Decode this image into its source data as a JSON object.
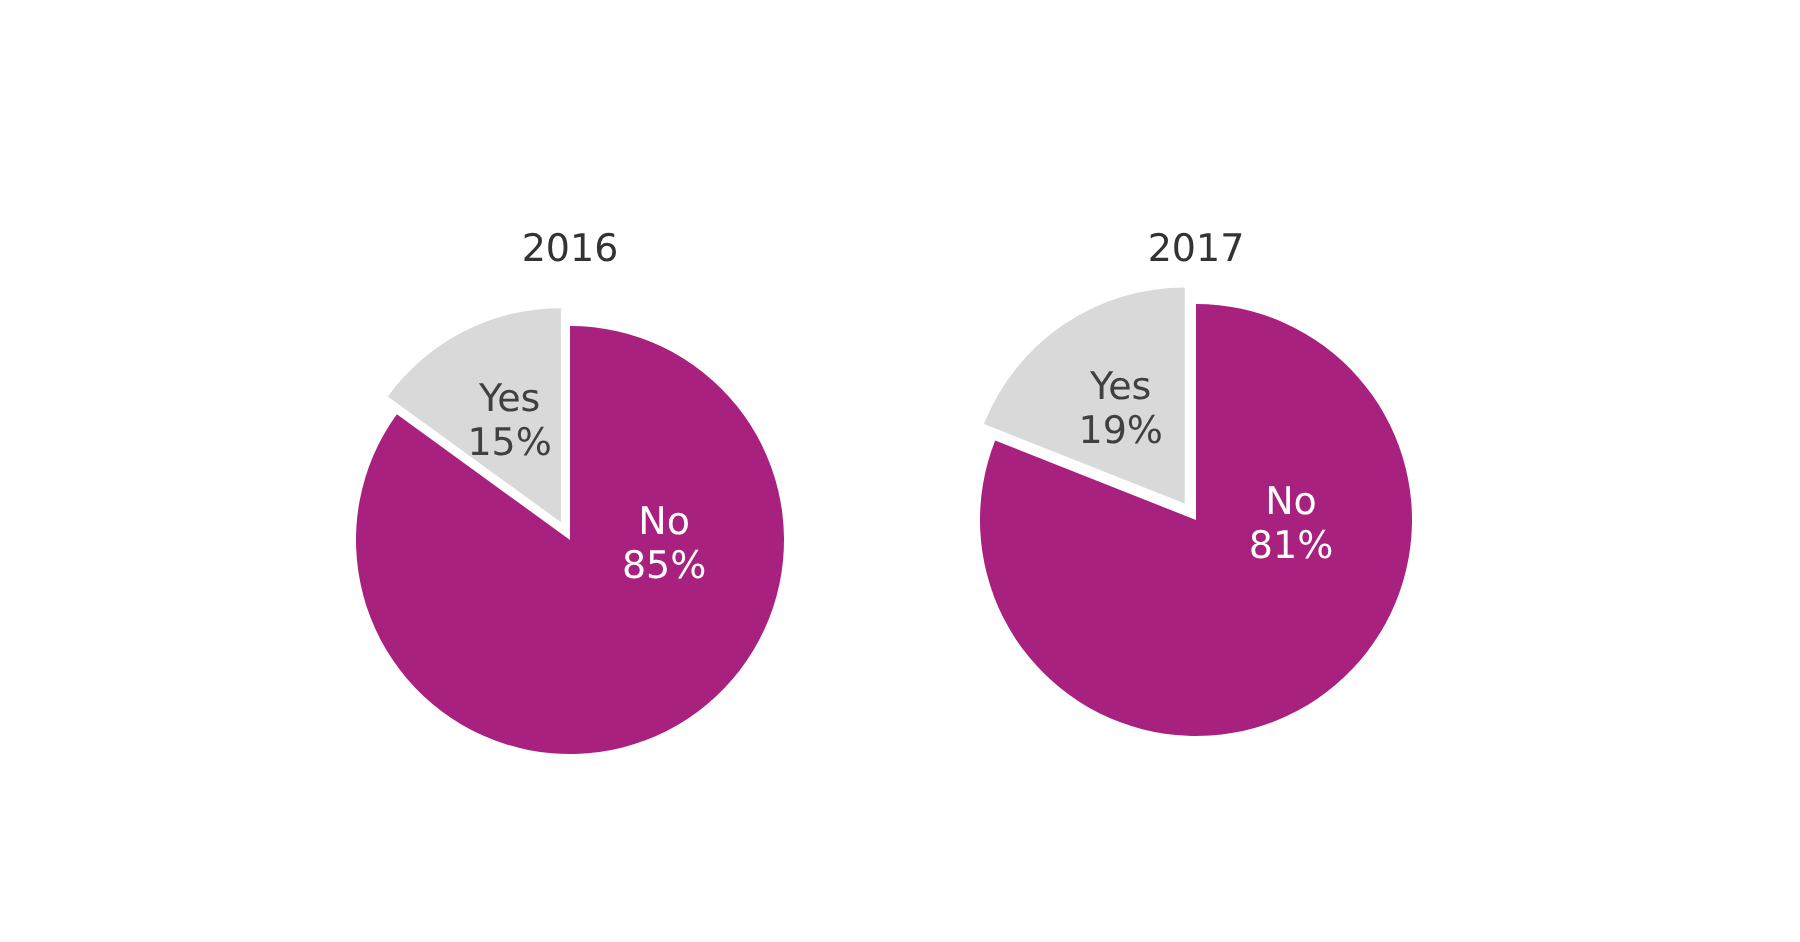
{
  "chart_data": [
    {
      "type": "pie",
      "title": "2016",
      "categories": [
        "No",
        "Yes"
      ],
      "values": [
        85,
        15
      ],
      "value_labels": [
        "85%",
        "15%"
      ],
      "colors": [
        "#a8217f",
        "#d9d9d9"
      ]
    },
    {
      "type": "pie",
      "title": "2017",
      "categories": [
        "No",
        "Yes"
      ],
      "values": [
        81,
        19
      ],
      "value_labels": [
        "81%",
        "19%"
      ],
      "colors": [
        "#a8217f",
        "#d9d9d9"
      ]
    }
  ]
}
